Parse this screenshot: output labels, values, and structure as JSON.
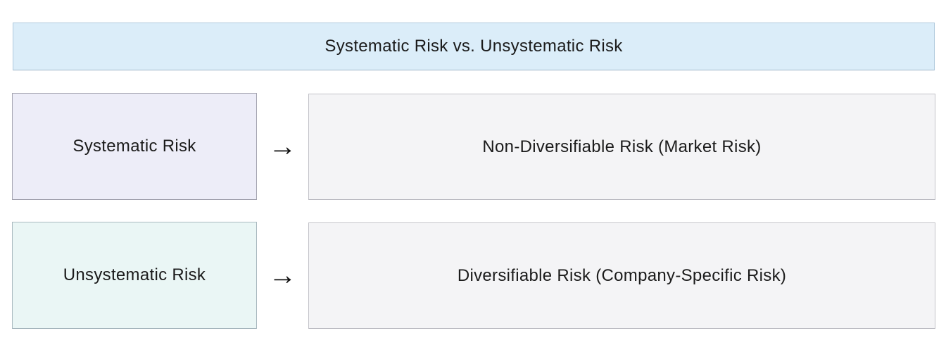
{
  "title": "Systematic Risk vs. Unsystematic Risk",
  "rows": [
    {
      "left": "Systematic Risk",
      "arrow": "→",
      "right": "Non-Diversifiable Risk (Market Risk)"
    },
    {
      "left": "Unsystematic Risk",
      "arrow": "→",
      "right": "Diversifiable Risk (Company-Specific Risk)"
    }
  ],
  "colors": {
    "background": "#FFFFFF",
    "title_fill": "#DBEDF9",
    "title_border": "#AFC9DD",
    "systematic_fill": "#EDEDF8",
    "systematic_border": "#A6A6B2",
    "unsystematic_fill": "#EAF6F5",
    "unsystematic_border": "#A9B9BF",
    "description_fill": "#F4F4F6",
    "description_border": "#C3C3C9",
    "text": "#1B1B1B"
  }
}
